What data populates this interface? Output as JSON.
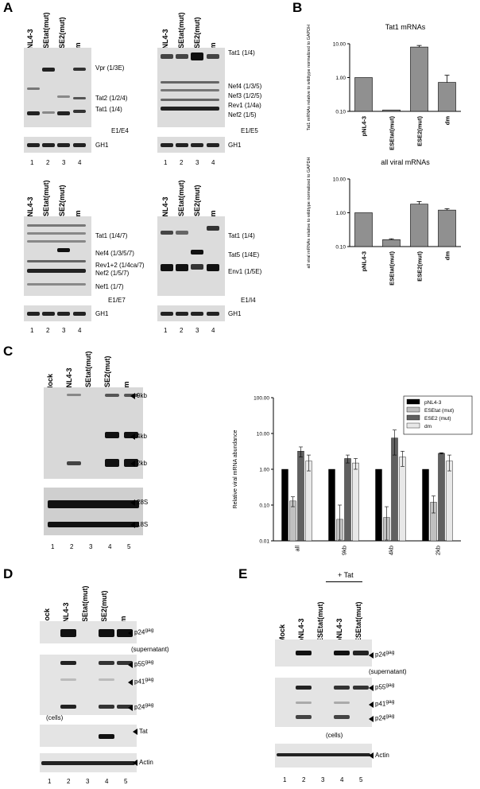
{
  "panel_letters": [
    "A",
    "B",
    "C",
    "D",
    "E"
  ],
  "A": {
    "lane_numbers": [
      "1",
      "2",
      "3",
      "4"
    ],
    "gh1": "GH1",
    "b1": {
      "lanes": [
        "pNL4-3",
        "ESEtat(mut)",
        "ESE2(mut)",
        "dm"
      ],
      "bands": [
        "Vpr (1/3E)",
        "Tat2 (1/2/4)",
        "Tat1 (1/4)"
      ],
      "primer": "E1/E4"
    },
    "b2": {
      "lanes": [
        "pNL4-3",
        "ESEtat(mut)",
        "ESE2(mut)",
        "dm"
      ],
      "bands": [
        "Tat1 (1/4)",
        "Nef4 (1/3/5)",
        "Nef3 (1/2/5)",
        "Rev1 (1/4a)",
        "Nef2 (1/5)"
      ],
      "primer": "E1/E5"
    },
    "b3": {
      "lanes": [
        "pNL4-3",
        "ESEtat(mut)",
        "ESE2(mut)",
        "dm"
      ],
      "bands": [
        "Tat1 (1/4/7)",
        "Nef4 (1/3/5/7)",
        "Rev1+2 (1/4ca/7)",
        "Nef2 (1/5/7)",
        "Nef1 (1/7)"
      ],
      "primer": "E1/E7"
    },
    "b4": {
      "lanes": [
        "pNL4-3",
        "ESEtat(mut)",
        "ESE2(mut)",
        "dm"
      ],
      "bands": [
        "Tat1 (1/4)",
        "Tat5 (1/4E)",
        "Env1 (1/5E)"
      ],
      "primer": "E1/I4"
    }
  },
  "C": {
    "blot_lanes": [
      "Mock",
      "pNL4-3",
      "ESEtat(mut)",
      "ESE2(mut)",
      "dm"
    ],
    "lane_numbers": [
      "1",
      "2",
      "3",
      "4",
      "5"
    ],
    "size_markers": [
      "9kb",
      "4kb",
      "2kb",
      "28S",
      "18S"
    ]
  },
  "D": {
    "lanes": [
      "Mock",
      "pNL4-3",
      "ESEtat(mut)",
      "ESE2(mut)",
      "dm"
    ],
    "lane_numbers": [
      "1",
      "2",
      "3",
      "4",
      "5"
    ],
    "p24": "p24",
    "gag": "gag",
    "p55": "p55",
    "p41": "p41",
    "supernatant": "(supernatant)",
    "cells": "(cells)",
    "tat": "Tat",
    "actin": "Actin"
  },
  "E": {
    "plus_tat": "+ Tat",
    "lanes": [
      "Mock",
      "pNL4-3",
      "ESEtat(mut)",
      "pNL4-3",
      "ESEtat(mut)"
    ],
    "lane_numbers": [
      "1",
      "2",
      "3",
      "4",
      "5"
    ],
    "p24": "p24",
    "gag": "gag",
    "p55": "p55",
    "p41": "p41",
    "supernatant": "(supernatant)",
    "cells": "(cells)",
    "actin": "Actin"
  },
  "chart_data": [
    {
      "type": "bar",
      "title": "Tat1 mRNAs",
      "ylabel": "Tat1 mRNAs relative to wildtype normalized to GAPDH",
      "yscale": "log",
      "ylim": [
        0.1,
        10
      ],
      "yticks": [
        "0.10",
        "1.00",
        "10.00"
      ],
      "categories": [
        "pNL4-3",
        "ESEtat(mut)",
        "ESE2(mut)",
        "dm"
      ],
      "values": [
        1.0,
        0.11,
        8.0,
        0.72
      ],
      "errors": [
        0,
        0,
        0.9,
        0.45
      ],
      "bar_color": "#909090"
    },
    {
      "type": "bar",
      "title": "all viral mRNAs",
      "ylabel": "all viral mRNAs relative to wildtype normalized to GAPDH",
      "yscale": "log",
      "ylim": [
        0.1,
        10
      ],
      "yticks": [
        "0.10",
        "1.00",
        "10.00"
      ],
      "categories": [
        "pNL4-3",
        "ESEtat(mut)",
        "ESE2(mut)",
        "dm"
      ],
      "values": [
        1.0,
        0.16,
        1.8,
        1.2
      ],
      "errors": [
        0,
        0.01,
        0.35,
        0.12
      ],
      "bar_color": "#909090"
    },
    {
      "type": "bar",
      "title": "",
      "ylabel": "Relative viral mRNA abundance",
      "yscale": "log",
      "ylim": [
        0.01,
        100
      ],
      "yticks": [
        "0.01",
        "0.10",
        "1.00",
        "10.00",
        "100.00"
      ],
      "categories": [
        "all",
        "9kb",
        "4kb",
        "2kb"
      ],
      "series": [
        {
          "name": "pNL4-3",
          "color": "#000000",
          "values": [
            1.0,
            1.0,
            1.0,
            1.0
          ],
          "errors": [
            0,
            0,
            0,
            0
          ]
        },
        {
          "name": "ESEtat (mut)",
          "color": "#c0c0c0",
          "values": [
            0.13,
            0.04,
            0.045,
            0.12
          ],
          "errors": [
            0.04,
            0.06,
            0.045,
            0.06
          ]
        },
        {
          "name": "ESE2 (mut)",
          "color": "#606060",
          "values": [
            3.2,
            2.0,
            7.5,
            2.8
          ],
          "errors": [
            1.0,
            0.5,
            5.0,
            0.1
          ]
        },
        {
          "name": "dm",
          "color": "#e8e8e8",
          "values": [
            1.7,
            1.5,
            2.2,
            1.7
          ],
          "errors": [
            0.8,
            0.5,
            1.0,
            0.8
          ]
        }
      ],
      "legend_position": "top-right"
    }
  ]
}
